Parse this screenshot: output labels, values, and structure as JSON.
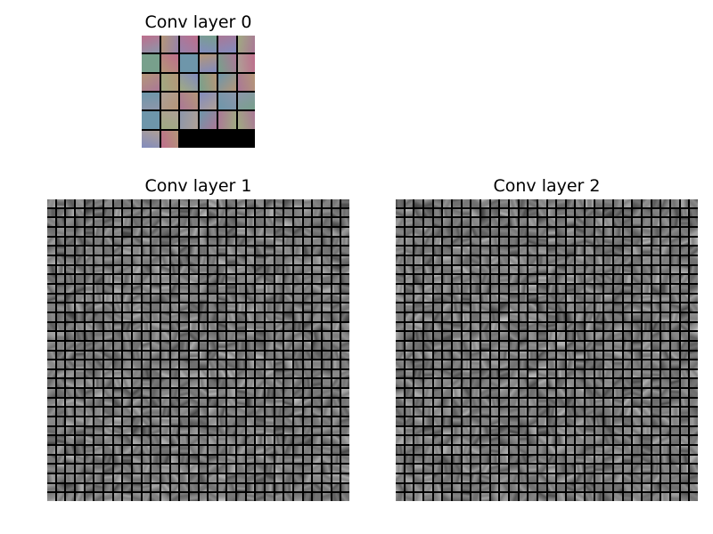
{
  "figure": {
    "background": "#ffffff",
    "panels": [
      {
        "title": "Conv layer 0",
        "grid": {
          "rows": 6,
          "cols": 6,
          "filled_tiles": 32
        },
        "tile_style": "color",
        "grid_line_color": "#000000"
      },
      {
        "title": "Conv layer 1",
        "grid": {
          "rows": 32,
          "cols": 32,
          "filled_tiles": 1024
        },
        "tile_style": "gray",
        "grid_line_color": "#000000"
      },
      {
        "title": "Conv layer 2",
        "grid": {
          "rows": 32,
          "cols": 32,
          "filled_tiles": 1024
        },
        "tile_style": "gray",
        "grid_line_color": "#000000"
      }
    ]
  }
}
